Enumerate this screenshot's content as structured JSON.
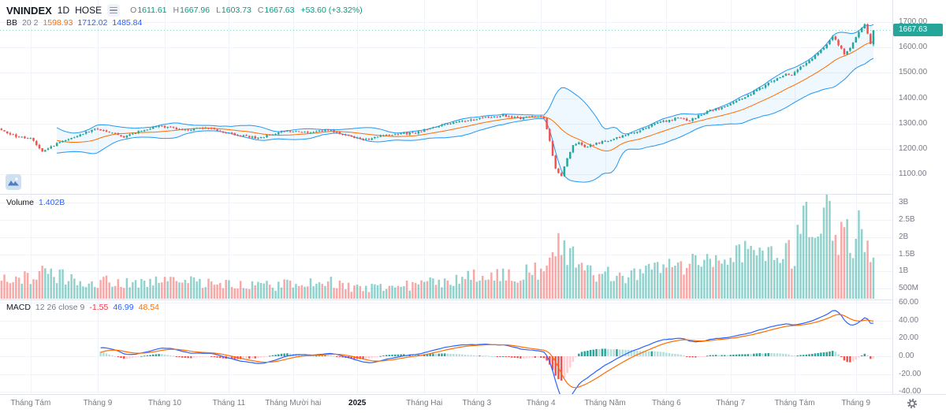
{
  "header": {
    "symbol": "VNINDEX",
    "interval": "1D",
    "exchange": "HOSE",
    "ohlc": {
      "open_label": "O",
      "open": "1611.61",
      "high_label": "H",
      "high": "1667.96",
      "low_label": "L",
      "low": "1603.73",
      "close_label": "C",
      "close": "1667.63",
      "change": "+53.60 (+3.32%)"
    },
    "bb_legend": {
      "name": "BB",
      "params": "20 2",
      "basis": "1598.93",
      "upper": "1712.02",
      "lower": "1485.84"
    }
  },
  "volume_legend": {
    "name": "Volume",
    "value": "1.402B"
  },
  "macd_legend": {
    "name": "MACD",
    "params": "12 26 close 9",
    "histogram": "-1.55",
    "macd": "46.99",
    "signal": "48.54"
  },
  "axes": {
    "price_ticks": [
      "1700.00",
      "1600.00",
      "1500.00",
      "1400.00",
      "1300.00",
      "1200.00",
      "1100.00"
    ],
    "volume_ticks": [
      "3B",
      "2.5B",
      "2B",
      "1.5B",
      "1B",
      "500M"
    ],
    "macd_ticks": [
      "60.00",
      "40.00",
      "20.00",
      "0.00",
      "-20.00",
      "-40.00"
    ],
    "last_price": "1667.63",
    "last_price_color": "#26a69a"
  },
  "chart_data": {
    "type": "candlestick",
    "title": "VNINDEX 1D HOSE",
    "panes": [
      {
        "name": "price",
        "indicators": [
          "Bollinger Bands (20, 2)"
        ],
        "y_range": [
          1100,
          1700
        ]
      },
      {
        "name": "volume",
        "y_range_millions": [
          0,
          3000
        ]
      },
      {
        "name": "macd",
        "params": "12 26 close 9",
        "y_range": [
          -40,
          60
        ]
      }
    ],
    "n_bars": 300,
    "x_axis_months": [
      {
        "label": "Tháng Tám",
        "i": 10,
        "year": false
      },
      {
        "label": "Tháng 9",
        "i": 33,
        "year": false
      },
      {
        "label": "Tháng 10",
        "i": 56,
        "year": false
      },
      {
        "label": "Tháng 11",
        "i": 78,
        "year": false
      },
      {
        "label": "Tháng Mười hai",
        "i": 100,
        "year": false
      },
      {
        "label": "2025",
        "i": 122,
        "year": true
      },
      {
        "label": "Tháng Hai",
        "i": 145,
        "year": false
      },
      {
        "label": "Tháng 3",
        "i": 163,
        "year": false
      },
      {
        "label": "Tháng 4",
        "i": 185,
        "year": false
      },
      {
        "label": "Tháng Năm",
        "i": 207,
        "year": false
      },
      {
        "label": "Tháng 6",
        "i": 228,
        "year": false
      },
      {
        "label": "Tháng 7",
        "i": 250,
        "year": false
      },
      {
        "label": "Tháng Tám",
        "i": 272,
        "year": false
      },
      {
        "label": "Tháng 9",
        "i": 293,
        "year": false
      }
    ],
    "close_keyframes": [
      [
        0,
        1272
      ],
      [
        5,
        1250
      ],
      [
        10,
        1242
      ],
      [
        14,
        1190
      ],
      [
        17,
        1210
      ],
      [
        22,
        1235
      ],
      [
        28,
        1262
      ],
      [
        33,
        1280
      ],
      [
        38,
        1262
      ],
      [
        42,
        1246
      ],
      [
        48,
        1272
      ],
      [
        54,
        1288
      ],
      [
        58,
        1284
      ],
      [
        64,
        1272
      ],
      [
        70,
        1286
      ],
      [
        76,
        1266
      ],
      [
        82,
        1252
      ],
      [
        88,
        1242
      ],
      [
        94,
        1262
      ],
      [
        100,
        1272
      ],
      [
        106,
        1262
      ],
      [
        112,
        1276
      ],
      [
        118,
        1252
      ],
      [
        124,
        1236
      ],
      [
        130,
        1248
      ],
      [
        136,
        1260
      ],
      [
        142,
        1262
      ],
      [
        148,
        1286
      ],
      [
        154,
        1300
      ],
      [
        160,
        1312
      ],
      [
        166,
        1322
      ],
      [
        172,
        1332
      ],
      [
        178,
        1320
      ],
      [
        183,
        1328
      ],
      [
        186,
        1318
      ],
      [
        188,
        1230
      ],
      [
        190,
        1120
      ],
      [
        192,
        1095
      ],
      [
        194,
        1160
      ],
      [
        196,
        1212
      ],
      [
        198,
        1228
      ],
      [
        200,
        1206
      ],
      [
        203,
        1218
      ],
      [
        207,
        1230
      ],
      [
        212,
        1248
      ],
      [
        217,
        1266
      ],
      [
        222,
        1290
      ],
      [
        227,
        1308
      ],
      [
        232,
        1322
      ],
      [
        236,
        1312
      ],
      [
        239,
        1330
      ],
      [
        243,
        1352
      ],
      [
        247,
        1362
      ],
      [
        250,
        1375
      ],
      [
        254,
        1398
      ],
      [
        258,
        1424
      ],
      [
        262,
        1450
      ],
      [
        266,
        1478
      ],
      [
        269,
        1498
      ],
      [
        271,
        1488
      ],
      [
        274,
        1520
      ],
      [
        278,
        1555
      ],
      [
        281,
        1590
      ],
      [
        283,
        1615
      ],
      [
        285,
        1640
      ],
      [
        287,
        1612
      ],
      [
        289,
        1575
      ],
      [
        291,
        1600
      ],
      [
        293,
        1645
      ],
      [
        295,
        1675
      ],
      [
        296,
        1692
      ],
      [
        297,
        1658
      ],
      [
        298,
        1614
      ],
      [
        299,
        1667.6
      ]
    ],
    "volume_keyframes_m": [
      [
        0,
        780
      ],
      [
        10,
        850
      ],
      [
        14,
        1250
      ],
      [
        18,
        900
      ],
      [
        25,
        760
      ],
      [
        33,
        700
      ],
      [
        40,
        680
      ],
      [
        48,
        720
      ],
      [
        56,
        820
      ],
      [
        64,
        700
      ],
      [
        72,
        650
      ],
      [
        80,
        620
      ],
      [
        88,
        640
      ],
      [
        96,
        600
      ],
      [
        104,
        640
      ],
      [
        112,
        700
      ],
      [
        118,
        560
      ],
      [
        124,
        480
      ],
      [
        130,
        540
      ],
      [
        136,
        580
      ],
      [
        145,
        620
      ],
      [
        152,
        700
      ],
      [
        160,
        820
      ],
      [
        168,
        880
      ],
      [
        176,
        920
      ],
      [
        183,
        1000
      ],
      [
        186,
        1100
      ],
      [
        188,
        1600
      ],
      [
        190,
        1950
      ],
      [
        192,
        1800
      ],
      [
        194,
        1500
      ],
      [
        197,
        1300
      ],
      [
        200,
        1150
      ],
      [
        204,
        950
      ],
      [
        208,
        900
      ],
      [
        213,
        880
      ],
      [
        218,
        950
      ],
      [
        222,
        1050
      ],
      [
        227,
        1100
      ],
      [
        232,
        1150
      ],
      [
        237,
        1200
      ],
      [
        242,
        1250
      ],
      [
        247,
        1300
      ],
      [
        250,
        1350
      ],
      [
        254,
        1450
      ],
      [
        258,
        1550
      ],
      [
        262,
        1600
      ],
      [
        266,
        1650
      ],
      [
        269,
        1500
      ],
      [
        272,
        1500
      ],
      [
        275,
        2950
      ],
      [
        277,
        1800
      ],
      [
        280,
        2200
      ],
      [
        283,
        2950
      ],
      [
        285,
        2300
      ],
      [
        287,
        1900
      ],
      [
        289,
        2600
      ],
      [
        291,
        1700
      ],
      [
        293,
        2000
      ],
      [
        295,
        2550
      ],
      [
        297,
        1750
      ],
      [
        298,
        1500
      ],
      [
        299,
        1402
      ]
    ],
    "last_bar": {
      "open": 1611.61,
      "high": 1667.96,
      "low": 1603.73,
      "close": 1667.63,
      "prev_close": 1614.03,
      "volume_m": 1402
    },
    "bollinger_last": {
      "basis": 1598.93,
      "upper": 1712.02,
      "lower": 1485.84
    },
    "macd_last": {
      "histogram": -1.55,
      "macd": 46.99,
      "signal": 48.54
    },
    "colors": {
      "up": "#26a69a",
      "down": "#ef5350",
      "vol_up": "rgba(38,166,154,0.5)",
      "vol_down": "rgba(239,83,80,0.5)",
      "bb_band": "#2196f3",
      "bb_fill": "rgba(33,150,243,0.07)",
      "bb_basis": "#ff6d00",
      "macd_line": "#2962ff",
      "signal_line": "#ff6d00",
      "hist_pos": "#26a69a",
      "hist_pos_weak": "#b2dfdb",
      "hist_neg": "#ef5350",
      "hist_neg_weak": "#ffcdd2",
      "grid": "#f0f3fa",
      "last_price_line": "rgba(8,153,129,0.45)"
    }
  }
}
